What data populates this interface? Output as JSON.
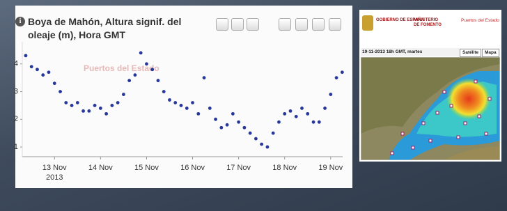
{
  "chart_data": {
    "type": "scatter",
    "title": "Boya de Mahón, Altura signif. del oleaje (m), Hora GMT",
    "watermark": "Puertos del Estado",
    "x_axis_year": "2013",
    "color": "#28379a",
    "x": [
      12.375,
      12.5,
      12.625,
      12.75,
      12.875,
      13.0,
      13.125,
      13.25,
      13.375,
      13.5,
      13.625,
      13.75,
      13.875,
      14.0,
      14.125,
      14.25,
      14.375,
      14.5,
      14.625,
      14.75,
      14.875,
      15.0,
      15.125,
      15.25,
      15.375,
      15.5,
      15.625,
      15.75,
      15.875,
      16.0,
      16.125,
      16.25,
      16.375,
      16.5,
      16.625,
      16.75,
      16.875,
      17.0,
      17.125,
      17.25,
      17.375,
      17.5,
      17.625,
      17.75,
      17.875,
      18.0,
      18.125,
      18.25,
      18.375,
      18.5,
      18.625,
      18.75,
      18.875,
      19.0,
      19.125,
      19.25
    ],
    "values": [
      4.3,
      3.9,
      3.8,
      3.6,
      3.7,
      3.3,
      3.0,
      2.6,
      2.5,
      2.6,
      2.3,
      2.3,
      2.5,
      2.4,
      2.2,
      2.5,
      2.6,
      2.9,
      3.4,
      3.6,
      4.4,
      4.0,
      3.8,
      3.4,
      3.0,
      2.7,
      2.6,
      2.5,
      2.4,
      2.6,
      2.2,
      3.5,
      2.4,
      2.0,
      1.7,
      1.8,
      2.2,
      1.9,
      1.7,
      1.5,
      1.3,
      1.1,
      1.0,
      1.5,
      1.9,
      2.2,
      2.3,
      2.1,
      2.4,
      2.2,
      1.9,
      1.9,
      2.4,
      2.9,
      3.5,
      3.7
    ],
    "xlim": [
      12.3,
      19.26
    ],
    "xticks": [
      {
        "value": 13,
        "label": "13 Nov"
      },
      {
        "value": 14,
        "label": "14 Nov"
      },
      {
        "value": 15,
        "label": "15 Nov"
      },
      {
        "value": 16,
        "label": "16 Nov"
      },
      {
        "value": 17,
        "label": "17 Nov"
      },
      {
        "value": 18,
        "label": "18 Nov"
      },
      {
        "value": 19,
        "label": "19 Nov"
      }
    ],
    "ylim": [
      0.65,
      4.8
    ],
    "yticks": [
      1,
      2,
      3,
      4
    ],
    "grid": false
  },
  "map_panel": {
    "logo_1": "GOBIERNO DE ESPAÑA",
    "logo_2": "MINISTERIO DE FOMENTO",
    "logo_3": "Puertos del Estado",
    "date_label": "19-11-2013 18h GMT, martes",
    "button_1": "Satélite",
    "button_2": "Mapa"
  }
}
